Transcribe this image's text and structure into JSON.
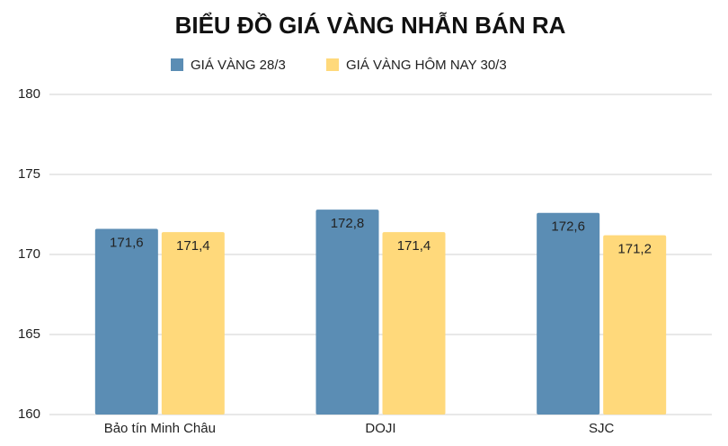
{
  "chart_data": {
    "type": "bar",
    "title": "BIỂU ĐỒ GIÁ VÀNG NHẪN BÁN RA",
    "categories": [
      "Bảo tín Minh Châu",
      "DOJI",
      "SJC"
    ],
    "series": [
      {
        "name": "GIÁ VÀNG 28/3",
        "color": "#5b8db4",
        "values": [
          171.6,
          172.8,
          172.6
        ],
        "value_labels": [
          "171,6",
          "172,8",
          "172,6"
        ]
      },
      {
        "name": "GIÁ VÀNG HÔM NAY 30/3",
        "color": "#ffd97b",
        "values": [
          171.4,
          171.4,
          171.2
        ],
        "value_labels": [
          "171,4",
          "171,4",
          "171,2"
        ]
      }
    ],
    "ylim": [
      160,
      180
    ],
    "yticks": [
      160,
      165,
      170,
      175,
      180
    ],
    "grid": true
  }
}
